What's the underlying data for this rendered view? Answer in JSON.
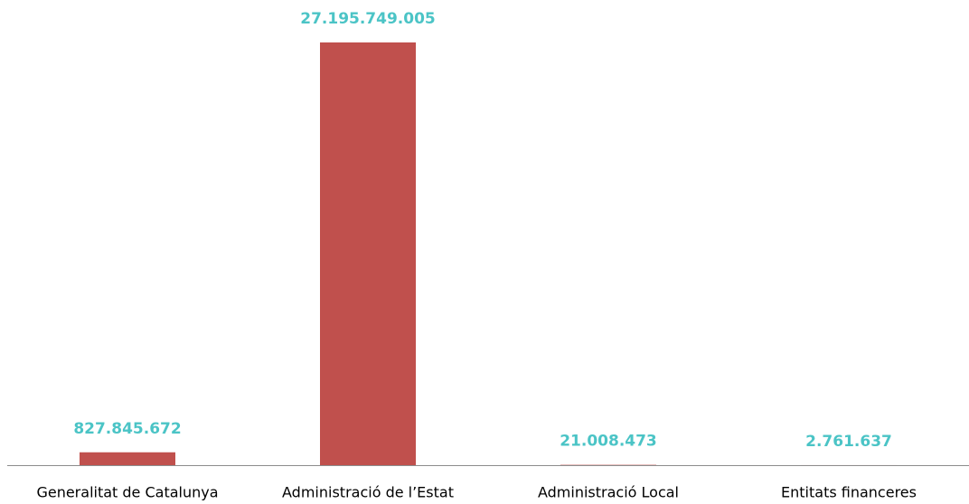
{
  "chart_data": {
    "type": "bar",
    "categories": [
      "Generalitat de Catalunya",
      "Administració de l’Estat",
      "Administració Local",
      "Entitats financeres"
    ],
    "values": [
      827845672,
      27195749005,
      21008473,
      2761637
    ],
    "value_labels": [
      "827.845.672",
      "27.195.749.005",
      "21.008.473",
      "2.761.637"
    ],
    "color": "#c0504d",
    "label_color": "#4bc4c6"
  }
}
